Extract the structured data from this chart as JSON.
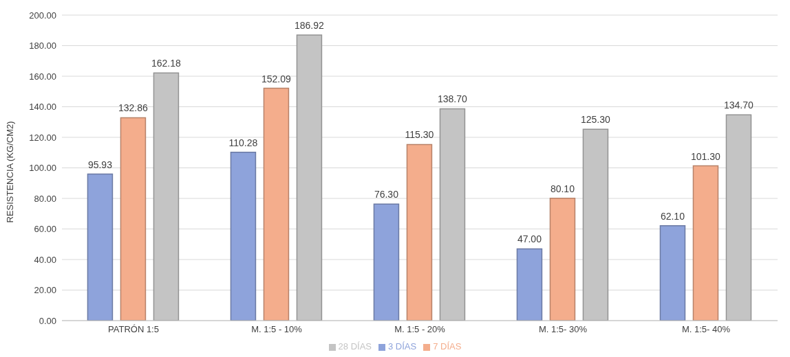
{
  "chart_data": {
    "type": "bar",
    "ylabel": "RESISTENCIA (KG/CM2)",
    "categories": [
      "PATRÓN 1:5",
      "M. 1:5 - 10%",
      "M. 1:5 - 20%",
      "M. 1:5- 30%",
      "M. 1:5- 40%"
    ],
    "series": [
      {
        "name": "3 DÍAS",
        "color": "#8ea3db",
        "values": [
          95.93,
          110.28,
          76.3,
          47.0,
          62.1
        ],
        "value_labels": [
          "95.93",
          "110.28",
          "76.30",
          "47.00",
          "62.10"
        ]
      },
      {
        "name": "7 DÍAS",
        "color": "#f4ad8c",
        "values": [
          132.86,
          152.09,
          115.3,
          80.1,
          101.3
        ],
        "value_labels": [
          "132.86",
          "152.09",
          "115.30",
          "80.10",
          "101.30"
        ]
      },
      {
        "name": "28 DÍAS",
        "color": "#c4c4c4",
        "values": [
          162.18,
          186.92,
          138.7,
          125.3,
          134.7
        ],
        "value_labels": [
          "162.18",
          "186.92",
          "138.70",
          "125.30",
          "134.70"
        ]
      }
    ],
    "ylim": [
      0,
      200
    ],
    "yticks": [
      {
        "value": 0,
        "label": "0.00"
      },
      {
        "value": 20,
        "label": "20.00"
      },
      {
        "value": 40,
        "label": "40.00"
      },
      {
        "value": 60,
        "label": "60.00"
      },
      {
        "value": 80,
        "label": "80.00"
      },
      {
        "value": 100,
        "label": "100.00"
      },
      {
        "value": 120,
        "label": "120.00"
      },
      {
        "value": 140,
        "label": "140.00"
      },
      {
        "value": 160,
        "label": "160.00"
      },
      {
        "value": 180,
        "label": "180.00"
      },
      {
        "value": 200,
        "label": "200.00"
      }
    ],
    "grid": "y",
    "legend": "bottom"
  }
}
